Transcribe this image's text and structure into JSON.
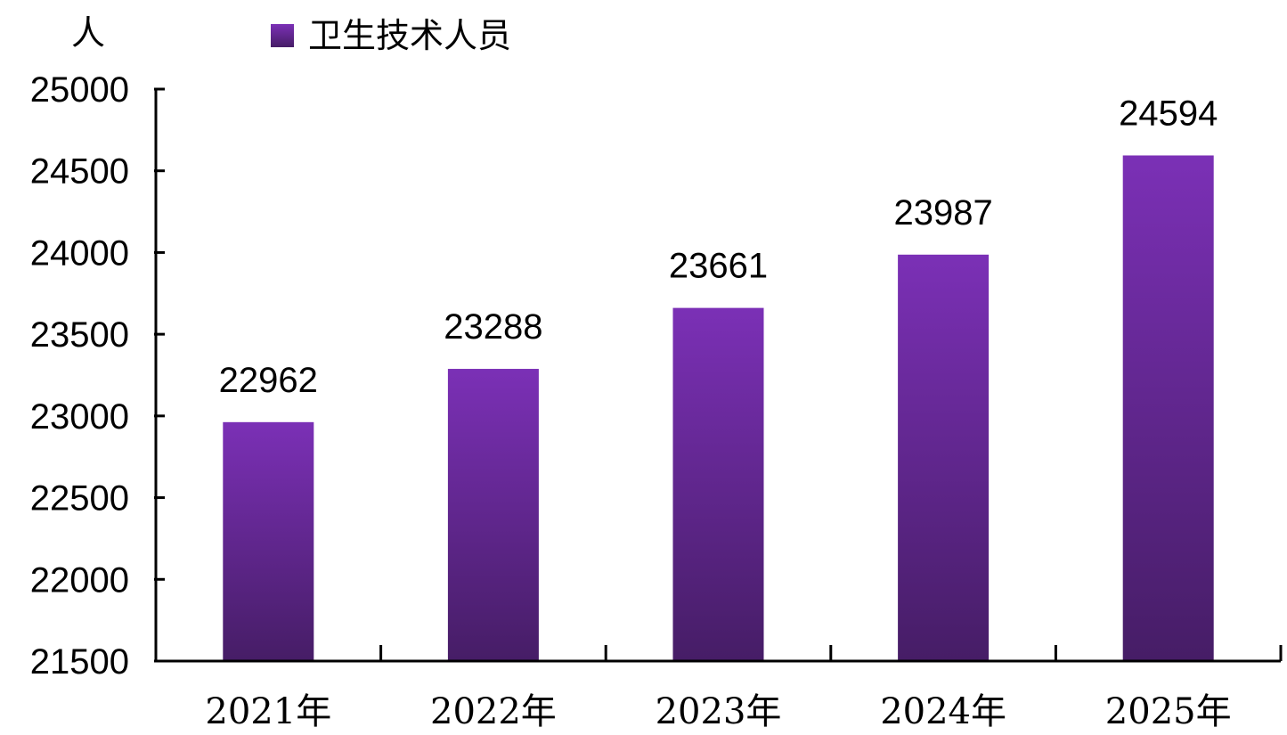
{
  "chart_data": {
    "type": "bar",
    "categories": [
      "2021年",
      "2022年",
      "2023年",
      "2024年",
      "2025年"
    ],
    "series": [
      {
        "name": "卫生技术人员",
        "values": [
          22962,
          23288,
          23661,
          23987,
          24594
        ]
      }
    ],
    "ylabel": "人",
    "ylim": [
      21500,
      25000
    ],
    "yticks": [
      21500,
      22000,
      22500,
      23000,
      23500,
      24000,
      24500,
      25000
    ],
    "legend": "top-left",
    "grid": false,
    "colors": {
      "bar_top": "#7b30b6",
      "bar_bottom": "#461d66"
    }
  }
}
